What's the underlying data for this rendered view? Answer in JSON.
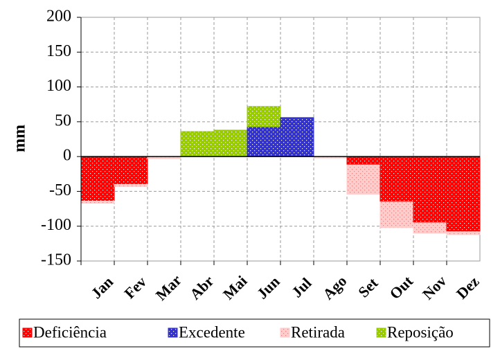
{
  "chart_data": {
    "type": "bar",
    "stacked": true,
    "ylabel": "mm",
    "categories": [
      "Jan",
      "Fev",
      "Mar",
      "Abr",
      "Mai",
      "Jun",
      "Jul",
      "Ago",
      "Set",
      "Out",
      "Nov",
      "Dez"
    ],
    "series": [
      {
        "name": "Deficiência",
        "color": "#ff0000",
        "values": [
          -64,
          -40,
          0,
          0,
          0,
          0,
          0,
          0,
          -12,
          -65,
          -95,
          -108
        ]
      },
      {
        "name": "Excedente",
        "color": "#3333cc",
        "values": [
          0,
          0,
          0,
          0,
          0,
          43,
          56,
          0,
          0,
          0,
          0,
          0
        ]
      },
      {
        "name": "Retirada",
        "color": "#ffcccc",
        "values": [
          -3,
          -3,
          -3,
          0,
          0,
          0,
          0,
          -2,
          -42,
          -37,
          -15,
          -4
        ]
      },
      {
        "name": "Reposição",
        "color": "#99cc00",
        "values": [
          0,
          0,
          0,
          36,
          38,
          29,
          0,
          0,
          0,
          0,
          0,
          0
        ]
      }
    ],
    "ylim": [
      -150,
      200
    ],
    "yticks": [
      -150,
      -100,
      -50,
      0,
      50,
      100,
      150,
      200
    ],
    "grid": true
  }
}
